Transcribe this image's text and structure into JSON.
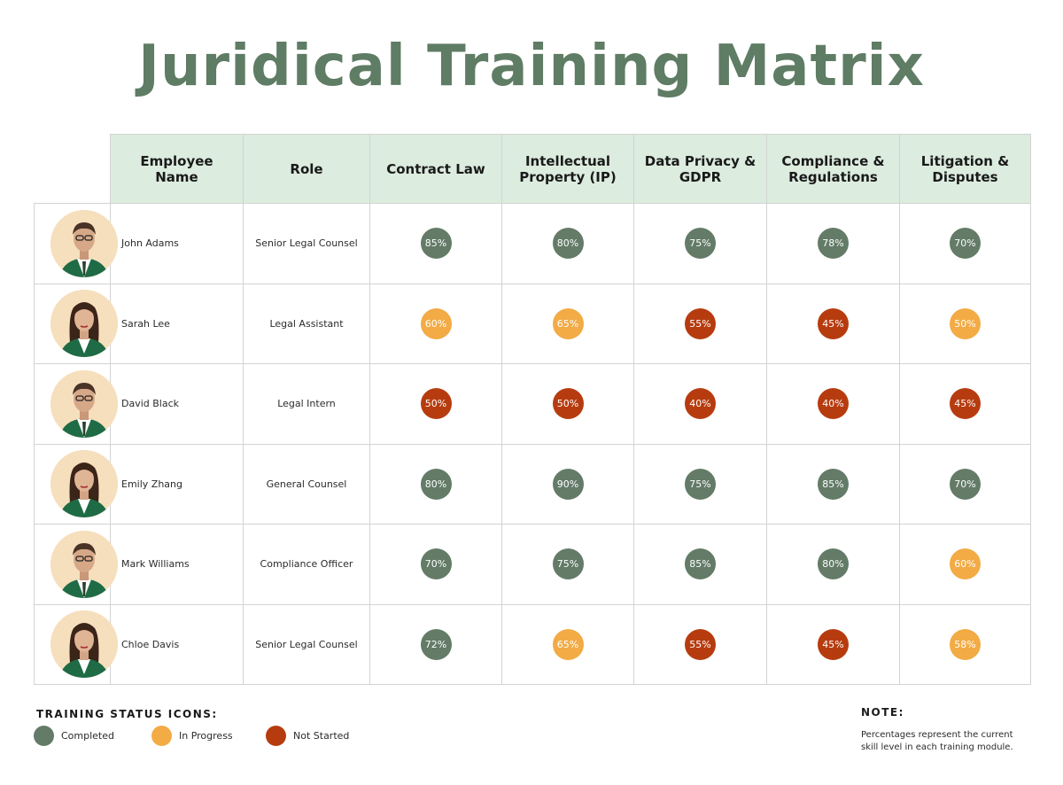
{
  "title": "Juridical Training Matrix",
  "colors": {
    "completed": "#637b67",
    "in_progress": "#f2ab45",
    "not_started": "#b63c0f",
    "header_bg": "#dcecdf",
    "title": "#5f7c64"
  },
  "table": {
    "headers": [
      "Employee Name",
      "Role",
      "Contract Law",
      "Intellectual Property (IP)",
      "Data Privacy & GDPR",
      "Compliance & Regulations",
      "Litigation & Disputes"
    ],
    "rows": [
      {
        "name": "John Adams",
        "role": "Senior Legal Counsel",
        "avatar": "man-avatar",
        "scores": [
          {
            "value": "85%",
            "status": "completed"
          },
          {
            "value": "80%",
            "status": "completed"
          },
          {
            "value": "75%",
            "status": "completed"
          },
          {
            "value": "78%",
            "status": "completed"
          },
          {
            "value": "70%",
            "status": "completed"
          }
        ]
      },
      {
        "name": "Sarah Lee",
        "role": "Legal Assistant",
        "avatar": "woman-avatar",
        "scores": [
          {
            "value": "60%",
            "status": "in_progress"
          },
          {
            "value": "65%",
            "status": "in_progress"
          },
          {
            "value": "55%",
            "status": "not_started"
          },
          {
            "value": "45%",
            "status": "not_started"
          },
          {
            "value": "50%",
            "status": "in_progress"
          }
        ]
      },
      {
        "name": "David Black",
        "role": "Legal Intern",
        "avatar": "man-avatar",
        "scores": [
          {
            "value": "50%",
            "status": "not_started"
          },
          {
            "value": "50%",
            "status": "not_started"
          },
          {
            "value": "40%",
            "status": "not_started"
          },
          {
            "value": "40%",
            "status": "not_started"
          },
          {
            "value": "45%",
            "status": "not_started"
          }
        ]
      },
      {
        "name": "Emily Zhang",
        "role": "General Counsel",
        "avatar": "woman-avatar",
        "scores": [
          {
            "value": "80%",
            "status": "completed"
          },
          {
            "value": "90%",
            "status": "completed"
          },
          {
            "value": "75%",
            "status": "completed"
          },
          {
            "value": "85%",
            "status": "completed"
          },
          {
            "value": "70%",
            "status": "completed"
          }
        ]
      },
      {
        "name": "Mark Williams",
        "role": "Compliance Officer",
        "avatar": "man-avatar",
        "scores": [
          {
            "value": "70%",
            "status": "completed"
          },
          {
            "value": "75%",
            "status": "completed"
          },
          {
            "value": "85%",
            "status": "completed"
          },
          {
            "value": "80%",
            "status": "completed"
          },
          {
            "value": "60%",
            "status": "in_progress"
          }
        ]
      },
      {
        "name": "Chloe Davis",
        "role": "Senior Legal Counsel",
        "avatar": "woman-avatar",
        "scores": [
          {
            "value": "72%",
            "status": "completed"
          },
          {
            "value": "65%",
            "status": "in_progress"
          },
          {
            "value": "55%",
            "status": "not_started"
          },
          {
            "value": "45%",
            "status": "not_started"
          },
          {
            "value": "58%",
            "status": "in_progress"
          }
        ]
      }
    ]
  },
  "legend": {
    "title": "TRAINING STATUS ICONS:",
    "items": [
      {
        "label": "Completed",
        "status": "completed"
      },
      {
        "label": "In Progress",
        "status": "in_progress"
      },
      {
        "label": "Not Started",
        "status": "not_started"
      }
    ]
  },
  "note": {
    "title": "NOTE:",
    "text": "Percentages represent the current skill level in each training module."
  }
}
